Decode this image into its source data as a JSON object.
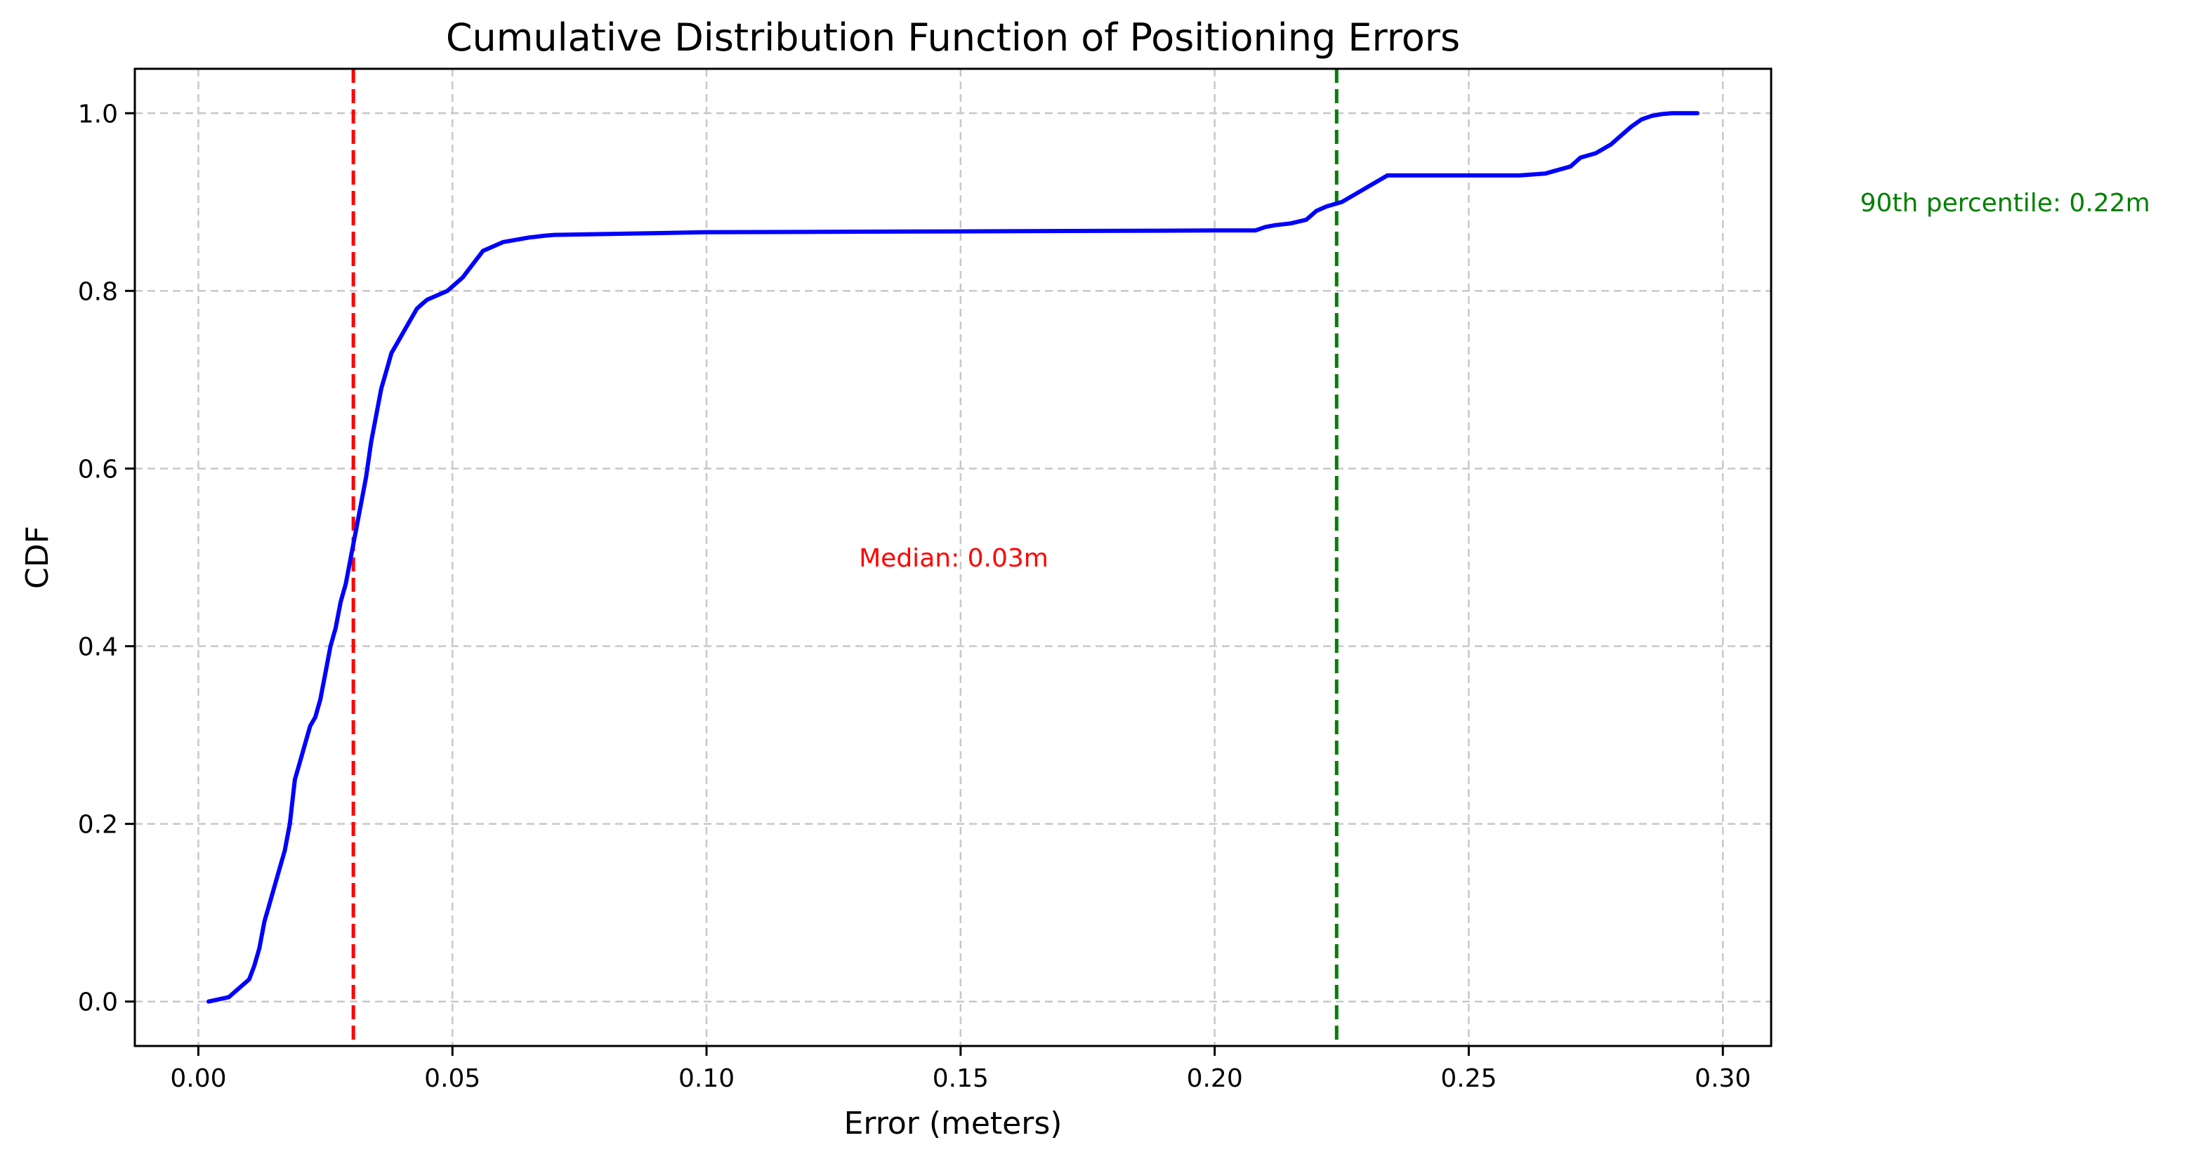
{
  "chart_data": {
    "type": "line",
    "title": "Cumulative Distribution Function of Positioning Errors",
    "xlabel": "Error (meters)",
    "ylabel": "CDF",
    "xlim": [
      -0.0125,
      0.3095
    ],
    "ylim": [
      -0.05,
      1.05
    ],
    "x_ticks": [
      0.0,
      0.05,
      0.1,
      0.15,
      0.2,
      0.25,
      0.3
    ],
    "x_tick_labels": [
      "0.00",
      "0.05",
      "0.10",
      "0.15",
      "0.20",
      "0.25",
      "0.30"
    ],
    "y_ticks": [
      0.0,
      0.2,
      0.4,
      0.6,
      0.8,
      1.0
    ],
    "y_tick_labels": [
      "0.0",
      "0.2",
      "0.4",
      "0.6",
      "0.8",
      "1.0"
    ],
    "grid": true,
    "series": [
      {
        "color": "#0000ff",
        "x": [
          0.002,
          0.006,
          0.008,
          0.01,
          0.011,
          0.012,
          0.013,
          0.014,
          0.015,
          0.016,
          0.017,
          0.018,
          0.019,
          0.02,
          0.021,
          0.022,
          0.023,
          0.024,
          0.025,
          0.026,
          0.027,
          0.028,
          0.029,
          0.03,
          0.031,
          0.032,
          0.033,
          0.034,
          0.035,
          0.036,
          0.037,
          0.038,
          0.039,
          0.04,
          0.041,
          0.042,
          0.043,
          0.044,
          0.045,
          0.047,
          0.049,
          0.05,
          0.052,
          0.054,
          0.056,
          0.058,
          0.06,
          0.065,
          0.068,
          0.07,
          0.09,
          0.1,
          0.15,
          0.2,
          0.208,
          0.21,
          0.212,
          0.215,
          0.218,
          0.22,
          0.222,
          0.225,
          0.228,
          0.231,
          0.234,
          0.24,
          0.25,
          0.26,
          0.265,
          0.27,
          0.272,
          0.275,
          0.278,
          0.28,
          0.282,
          0.284,
          0.286,
          0.288,
          0.29,
          0.295
        ],
        "y": [
          0.0,
          0.005,
          0.015,
          0.025,
          0.04,
          0.06,
          0.09,
          0.11,
          0.13,
          0.15,
          0.17,
          0.2,
          0.25,
          0.27,
          0.29,
          0.31,
          0.32,
          0.34,
          0.37,
          0.4,
          0.42,
          0.45,
          0.47,
          0.5,
          0.53,
          0.56,
          0.59,
          0.63,
          0.66,
          0.69,
          0.71,
          0.73,
          0.74,
          0.75,
          0.76,
          0.77,
          0.78,
          0.785,
          0.79,
          0.795,
          0.8,
          0.805,
          0.815,
          0.83,
          0.845,
          0.85,
          0.855,
          0.86,
          0.862,
          0.863,
          0.865,
          0.866,
          0.867,
          0.868,
          0.868,
          0.872,
          0.874,
          0.876,
          0.88,
          0.89,
          0.895,
          0.9,
          0.91,
          0.92,
          0.93,
          0.93,
          0.93,
          0.93,
          0.932,
          0.94,
          0.95,
          0.955,
          0.965,
          0.975,
          0.985,
          0.993,
          0.997,
          0.999,
          1.0,
          1.0
        ]
      }
    ],
    "vlines": [
      {
        "x": 0.0305,
        "color": "#ff0000",
        "style": "dashed"
      },
      {
        "x": 0.224,
        "color": "#008000",
        "style": "dashed"
      }
    ],
    "annotations": [
      {
        "text": "Median: 0.03m",
        "x": 0.13,
        "y": 0.5,
        "color": "#ff0000"
      },
      {
        "text": "90th percentile: 0.22m",
        "x": 0.327,
        "y": 0.9,
        "color": "#008000"
      }
    ]
  }
}
